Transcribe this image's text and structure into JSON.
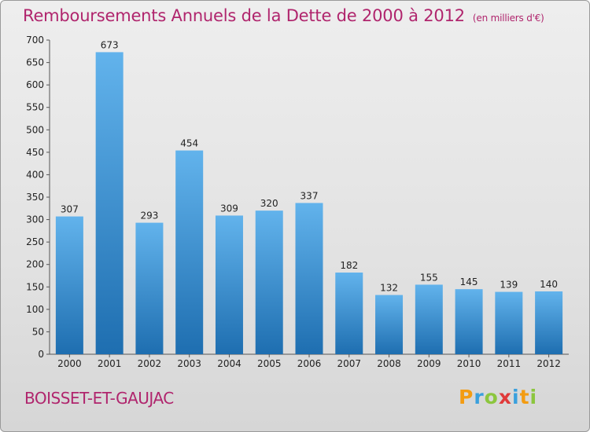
{
  "header": {
    "title": "Remboursements Annuels de la Dette de 2000 à 2012",
    "unit": "(en milliers d'€)"
  },
  "footer": {
    "commune": "BOISSET-ET-GAUJAC",
    "logo": [
      "P",
      "r",
      "o",
      "x",
      "i",
      "t",
      "i"
    ]
  },
  "colors": {
    "title": "#b0256d",
    "bar_top": "#62b3ec",
    "bar_bottom": "#1e6eb0",
    "logo": [
      "#f39c12",
      "#3aa0dd",
      "#8cc63e",
      "#e03a3a",
      "#3aa0dd",
      "#f39c12",
      "#8cc63e"
    ]
  },
  "chart_data": {
    "type": "bar",
    "categories": [
      "2000",
      "2001",
      "2002",
      "2003",
      "2004",
      "2005",
      "2006",
      "2007",
      "2008",
      "2009",
      "2010",
      "2011",
      "2012"
    ],
    "values": [
      307,
      673,
      293,
      454,
      309,
      320,
      337,
      182,
      132,
      155,
      145,
      139,
      140
    ],
    "ylim": [
      0,
      700
    ],
    "yticks": [
      0,
      50,
      100,
      150,
      200,
      250,
      300,
      350,
      400,
      450,
      500,
      550,
      600,
      650,
      700
    ],
    "grid": false,
    "xlabel": "",
    "ylabel": ""
  }
}
